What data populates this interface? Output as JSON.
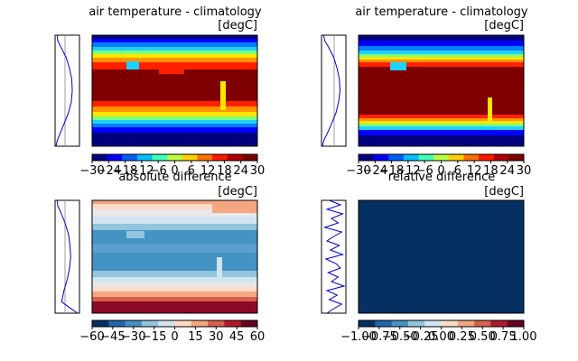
{
  "chart_data": [
    {
      "type": "heatmap",
      "title": "air temperature - climatology",
      "units": "[degC]",
      "colormap": "jet",
      "colorbar_ticks": [
        "−30",
        "−24",
        "−18",
        "−12",
        "−6",
        "0",
        "6",
        "12",
        "18",
        "24",
        "30"
      ],
      "vmin": -30,
      "vmax": 30,
      "zonal_profile": {
        "y": [
          0,
          0.05,
          0.1,
          0.2,
          0.3,
          0.4,
          0.5,
          0.6,
          0.7,
          0.8,
          0.9,
          0.95,
          1
        ],
        "x": [
          0.05,
          0.08,
          0.2,
          0.45,
          0.6,
          0.7,
          0.72,
          0.68,
          0.55,
          0.35,
          0.15,
          0.05,
          0.0
        ]
      }
    },
    {
      "type": "heatmap",
      "title": "air temperature - climatology",
      "units": "[degC]",
      "colormap": "jet",
      "colorbar_ticks": [
        "−30",
        "−24",
        "−18",
        "−12",
        "−6",
        "0",
        "6",
        "12",
        "18",
        "24",
        "30"
      ],
      "vmin": -30,
      "vmax": 30,
      "zonal_profile": {
        "y": [
          0,
          0.05,
          0.1,
          0.2,
          0.3,
          0.4,
          0.5,
          0.6,
          0.7,
          0.8,
          0.9,
          0.95,
          1
        ],
        "x": [
          0.05,
          0.1,
          0.25,
          0.5,
          0.65,
          0.75,
          0.78,
          0.72,
          0.6,
          0.4,
          0.18,
          0.06,
          0.0
        ]
      }
    },
    {
      "type": "heatmap",
      "title": "absolute difference",
      "units": "[degC]",
      "colormap": "RdBu_r",
      "colorbar_ticks": [
        "−60",
        "−45",
        "−30",
        "−15",
        "0",
        "15",
        "30",
        "45",
        "60"
      ],
      "vmin": -60,
      "vmax": 60,
      "zonal_profile": {
        "y": [
          0,
          0.05,
          0.1,
          0.2,
          0.3,
          0.4,
          0.5,
          0.6,
          0.7,
          0.8,
          0.9,
          0.95,
          1
        ],
        "x": [
          0.05,
          0.08,
          0.2,
          0.4,
          0.55,
          0.62,
          0.65,
          0.6,
          0.5,
          0.35,
          0.25,
          0.6,
          0.95
        ]
      }
    },
    {
      "type": "heatmap",
      "title": "relative difference",
      "units": "[degC]",
      "colormap": "RdBu_r",
      "colorbar_ticks": [
        "−1.00",
        "−0.75",
        "−0.50",
        "−0.25",
        "0.00",
        "0.25",
        "0.50",
        "0.75",
        "1.00"
      ],
      "vmin": -1.0,
      "vmax": 1.0,
      "zonal_profile": {
        "y": [
          0,
          0.04,
          0.08,
          0.12,
          0.16,
          0.2,
          0.24,
          0.28,
          0.32,
          0.36,
          0.4,
          0.44,
          0.48,
          0.52,
          0.56,
          0.6,
          0.64,
          0.68,
          0.72,
          0.76,
          0.8,
          0.84,
          0.88,
          0.92,
          0.96,
          1
        ],
        "x": [
          0.3,
          0.8,
          0.2,
          0.9,
          0.4,
          0.7,
          0.1,
          0.85,
          0.5,
          0.2,
          0.75,
          0.35,
          0.9,
          0.15,
          0.6,
          0.8,
          0.25,
          0.7,
          0.4,
          0.95,
          0.2,
          0.65,
          0.3,
          0.85,
          0.5,
          0.2
        ]
      }
    }
  ]
}
